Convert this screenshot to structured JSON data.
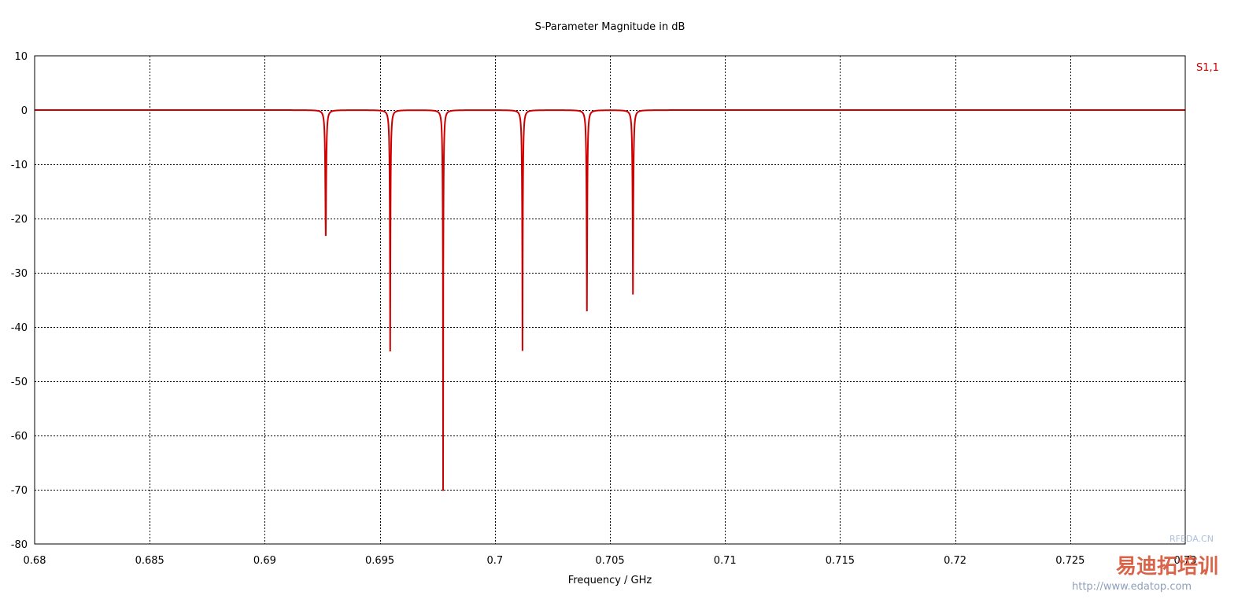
{
  "chart_data": {
    "type": "line",
    "title": "S-Parameter Magnitude in dB",
    "xlabel": "Frequency / GHz",
    "ylabel": "",
    "xlim": [
      0.68,
      0.73
    ],
    "ylim": [
      -80,
      10
    ],
    "x_ticks": [
      0.68,
      0.685,
      0.69,
      0.695,
      0.7,
      0.705,
      0.71,
      0.715,
      0.72,
      0.725,
      0.73
    ],
    "x_tick_labels": [
      "0.68",
      "0.685",
      "0.69",
      "0.695",
      "0.7",
      "0.705",
      "0.71",
      "0.715",
      "0.72",
      "0.725",
      "0.73"
    ],
    "y_ticks": [
      10,
      0,
      -10,
      -20,
      -30,
      -40,
      -50,
      -60,
      -70,
      -80
    ],
    "y_tick_labels": [
      "10",
      "0",
      "-10",
      "-20",
      "-30",
      "-40",
      "-50",
      "-60",
      "-70",
      "-80"
    ],
    "grid": true,
    "legend_position": "right",
    "series": [
      {
        "name": "S1,1",
        "color": "#cc0000",
        "baseline_db": 0,
        "resonances": [
          {
            "x": 0.69265,
            "y": -23.2
          },
          {
            "x": 0.69545,
            "y": -44.5
          },
          {
            "x": 0.69775,
            "y": -70.2
          },
          {
            "x": 0.7012,
            "y": -44.4
          },
          {
            "x": 0.704,
            "y": -37.1
          },
          {
            "x": 0.706,
            "y": -34.0
          }
        ]
      }
    ]
  },
  "watermark": {
    "site": "RFEDA.CN",
    "brand": "易迪拓培训",
    "url": "http://www.edatop.com"
  }
}
